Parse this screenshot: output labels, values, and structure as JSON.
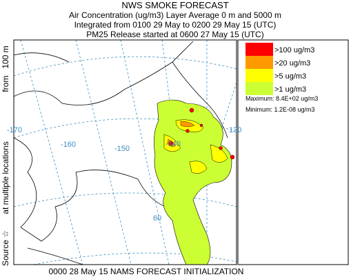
{
  "header": {
    "title": "NWS SMOKE FORECAST",
    "lines": [
      "Air Concentration (ug/m3) Layer Average    0 m and  5000 m",
      "Integrated from 0100 29 May to 0200 29 May 15 (UTC)",
      "PM25 Release started at 0600 27 May 15 (UTC)"
    ]
  },
  "side_label": [
    "Source ☆",
    "at multiple locations",
    "from   100 m"
  ],
  "legend": {
    "items": [
      {
        "label": ">100 ug/m3",
        "color": "#ff0000"
      },
      {
        "label": ">20 ug/m3",
        "color": "#ff9900"
      },
      {
        "label": ">5 ug/m3",
        "color": "#ffff00"
      },
      {
        "label": ">1 ug/m3",
        "color": "#ccff33"
      }
    ],
    "maximum": "Maximum: 8.4E+02 ug/m3",
    "minimum": "Minimum: 1.2E-08 ug/m3"
  },
  "map_labels": [
    "-170",
    "-160",
    "-150",
    "-140",
    "130",
    "60"
  ],
  "footer": "0000 28 May 15 NAMS FORECAST INITIALIZATION"
}
